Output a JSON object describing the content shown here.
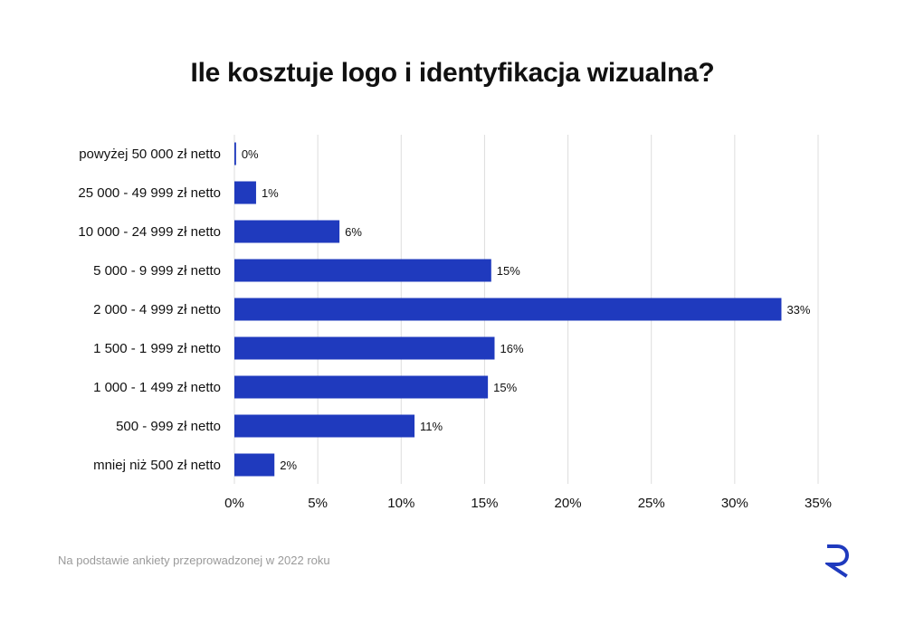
{
  "title": "Ile kosztuje logo i identyfikacja wizualna?",
  "source_note": "Na podstawie ankiety przeprowadzonej w 2022 roku",
  "colors": {
    "bar": "#1f3abe",
    "grid": "#dddddd",
    "text": "#111111",
    "note": "#9a9a9a",
    "logo": "#1f3abe"
  },
  "logo_icon": "r-logo-icon",
  "chart_data": {
    "type": "bar",
    "orientation": "horizontal",
    "title": "Ile kosztuje logo i identyfikacja wizualna?",
    "categories": [
      "powyżej 50 000 zł netto",
      "25 000 - 49 999 zł netto",
      "10 000 - 24 999 zł netto",
      "5 000 - 9 999 zł netto",
      "2 000 - 4 999 zł netto",
      "1 500 - 1 999 zł netto",
      "1 000 - 1 499 zł netto",
      "500 - 999 zł netto",
      "mniej niż 500 zł netto"
    ],
    "values": [
      0.1,
      1.3,
      6.3,
      15.4,
      32.8,
      15.6,
      15.2,
      10.8,
      2.4
    ],
    "data_labels": [
      "0%",
      "1%",
      "6%",
      "15%",
      "33%",
      "16%",
      "15%",
      "11%",
      "2%"
    ],
    "xlim": [
      0,
      35
    ],
    "x_ticks": [
      0,
      5,
      10,
      15,
      20,
      25,
      30,
      35
    ],
    "x_tick_labels": [
      "0%",
      "5%",
      "10%",
      "15%",
      "20%",
      "25%",
      "30%",
      "35%"
    ],
    "xlabel": "",
    "ylabel": "",
    "grid": "vertical",
    "legend": "none"
  }
}
